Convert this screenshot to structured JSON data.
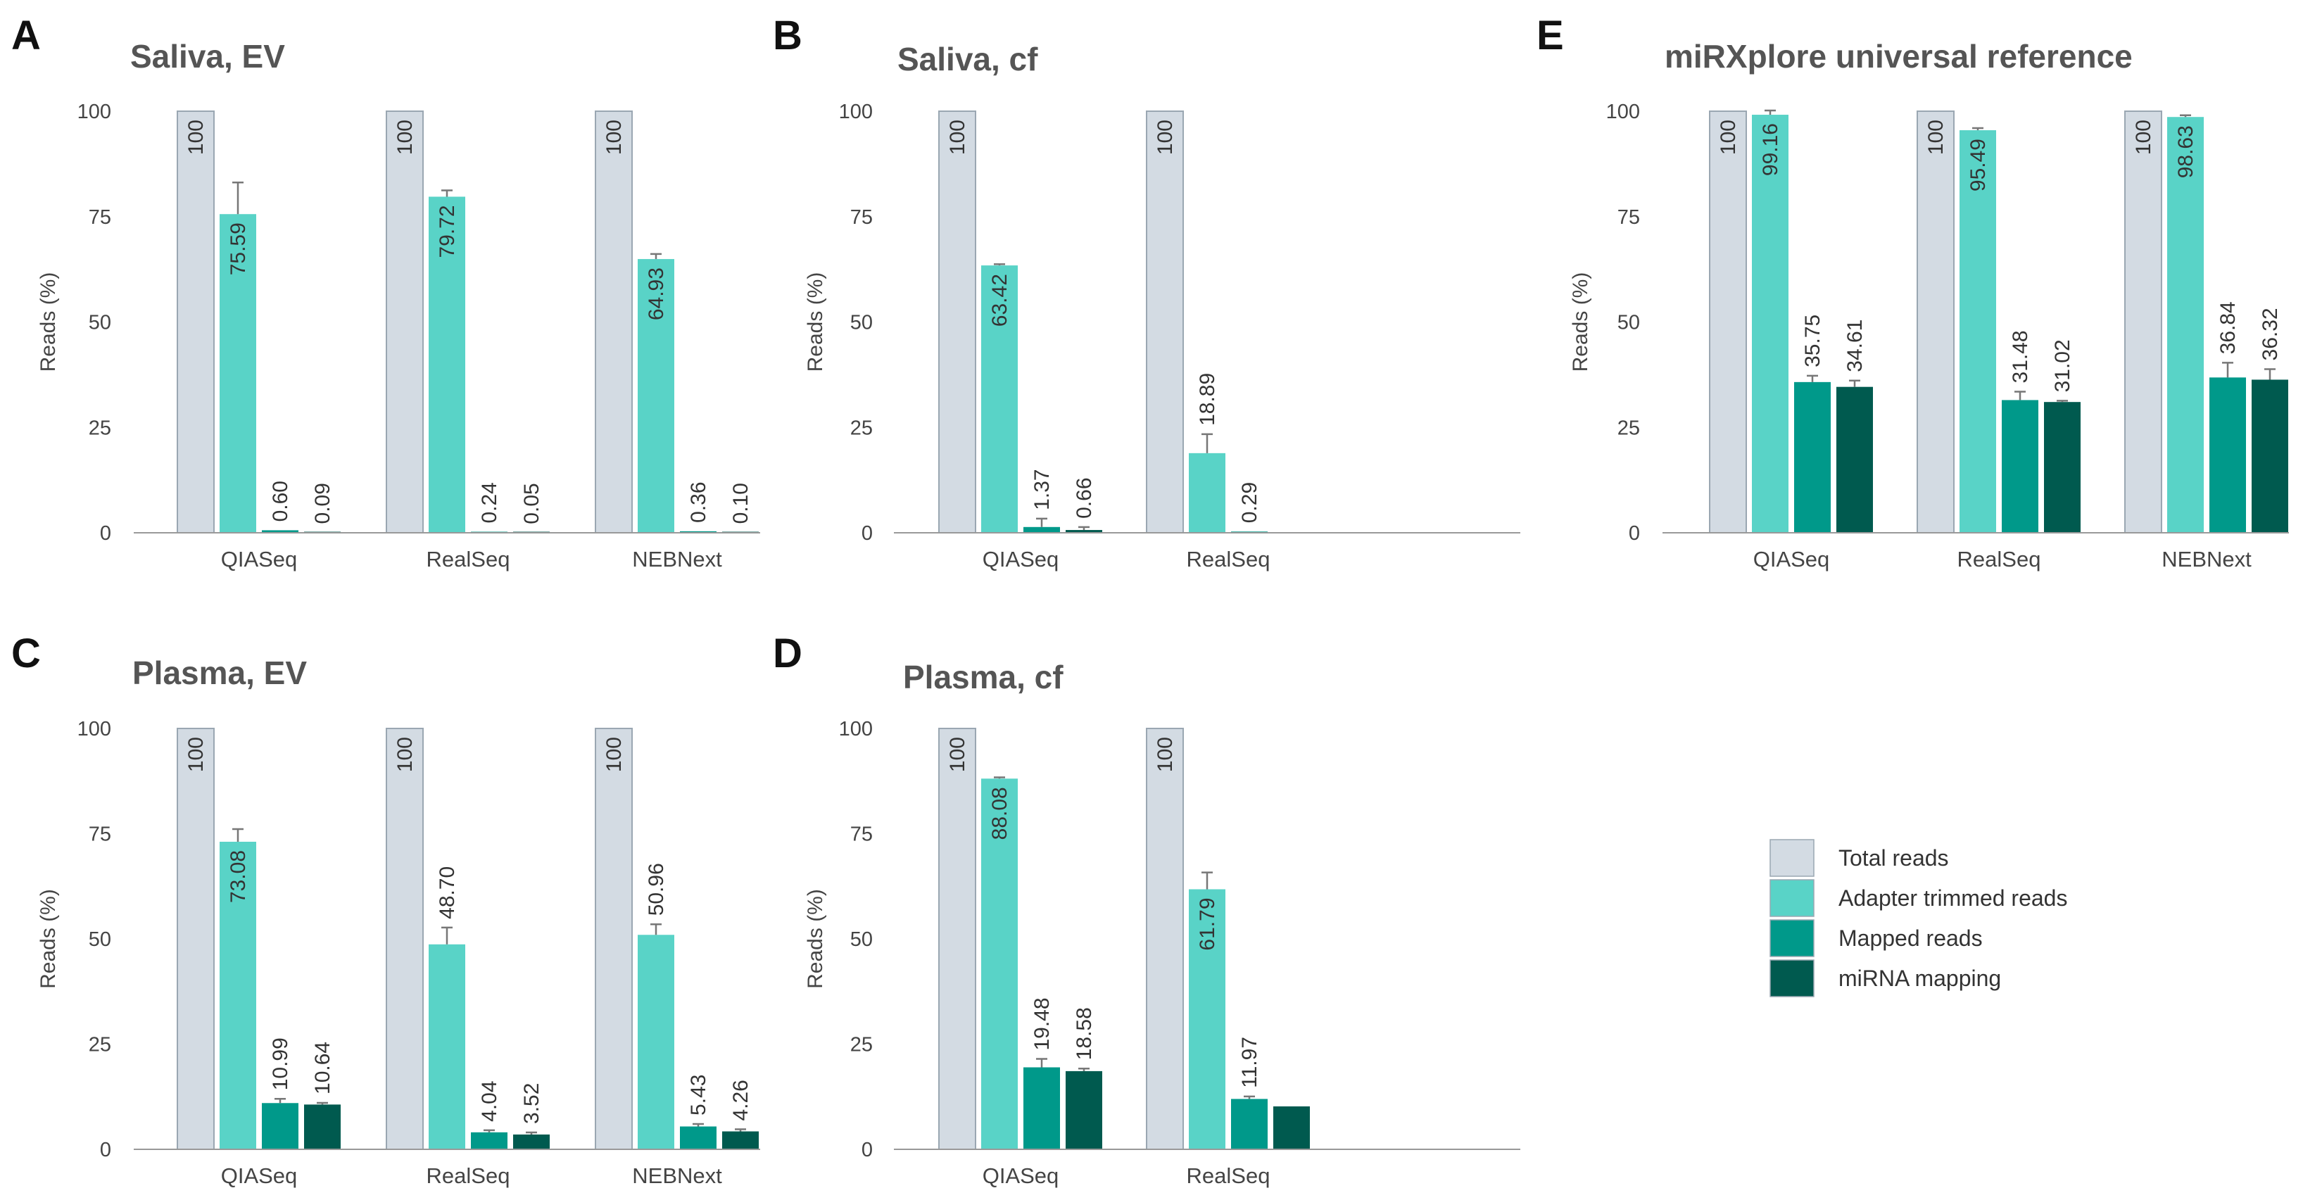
{
  "series_colors": {
    "Total reads": "#d3dbe3",
    "Adapter trimmed reads": "#59d3c7",
    "Mapped reads": "#00998a",
    "miRNA mapping": "#005a4f"
  },
  "legend": {
    "items": [
      {
        "label": "Total reads",
        "color": "#d3dbe3"
      },
      {
        "label": "Adapter trimmed reads",
        "color": "#59d3c7"
      },
      {
        "label": "Mapped reads",
        "color": "#00998a"
      },
      {
        "label": "miRNA mapping",
        "color": "#005a4f"
      }
    ]
  },
  "chart_data": [
    {
      "id": "A",
      "type": "bar",
      "title": "Saliva, EV",
      "ylabel": "Reads (%)",
      "ylim": [
        0,
        100
      ],
      "yticks": [
        "0",
        "25",
        "50",
        "75",
        "100"
      ],
      "slots": 3,
      "categories": [
        "QIASeq",
        "RealSeq",
        "NEBNext"
      ],
      "series": [
        {
          "name": "Total reads",
          "values": [
            100,
            100,
            100
          ],
          "labels": [
            "100",
            "100",
            "100"
          ],
          "errors": [
            0,
            0,
            0
          ]
        },
        {
          "name": "Adapter trimmed reads",
          "values": [
            75.59,
            79.72,
            64.93
          ],
          "labels": [
            "75.59",
            "79.72",
            "64.93"
          ],
          "errors": [
            7.5,
            1.5,
            1.2
          ]
        },
        {
          "name": "Mapped reads",
          "values": [
            0.6,
            0.24,
            0.36
          ],
          "labels": [
            "0.60",
            "0.24",
            "0.36"
          ],
          "errors": [
            0,
            0,
            0
          ]
        },
        {
          "name": "miRNA mapping",
          "values": [
            0.09,
            0.05,
            0.1
          ],
          "labels": [
            "0.09",
            "0.05",
            "0.10"
          ],
          "errors": [
            0,
            0,
            0
          ]
        }
      ]
    },
    {
      "id": "B",
      "type": "bar",
      "title": "Saliva, cf",
      "ylabel": "Reads (%)",
      "ylim": [
        0,
        100
      ],
      "yticks": [
        "0",
        "25",
        "50",
        "75",
        "100"
      ],
      "slots": 3,
      "categories": [
        "QIASeq",
        "RealSeq"
      ],
      "series": [
        {
          "name": "Total reads",
          "values": [
            100,
            100
          ],
          "labels": [
            "100",
            "100"
          ],
          "errors": [
            0,
            0
          ]
        },
        {
          "name": "Adapter trimmed reads",
          "values": [
            63.42,
            18.89
          ],
          "labels": [
            "63.42",
            "18.89"
          ],
          "errors": [
            0.3,
            4.5
          ]
        },
        {
          "name": "Mapped reads",
          "values": [
            1.37,
            0.29
          ],
          "labels": [
            "1.37",
            "0.29"
          ],
          "errors": [
            2.0,
            0
          ]
        },
        {
          "name": "miRNA mapping",
          "values": [
            0.66,
            null
          ],
          "labels": [
            "0.66",
            null
          ],
          "errors": [
            0.7,
            0
          ]
        }
      ]
    },
    {
      "id": "E",
      "type": "bar",
      "title": "miRXplore universal reference",
      "ylabel": "Reads (%)",
      "ylim": [
        0,
        100
      ],
      "yticks": [
        "0",
        "25",
        "50",
        "75",
        "100"
      ],
      "slots": 3,
      "categories": [
        "QIASeq",
        "RealSeq",
        "NEBNext"
      ],
      "series": [
        {
          "name": "Total reads",
          "values": [
            100,
            100,
            100
          ],
          "labels": [
            "100",
            "100",
            "100"
          ],
          "errors": [
            0,
            0,
            0
          ]
        },
        {
          "name": "Adapter trimmed reads",
          "values": [
            99.16,
            95.49,
            98.63
          ],
          "labels": [
            "99.16",
            "95.49",
            "98.63"
          ],
          "errors": [
            1.0,
            0.5,
            0.4
          ]
        },
        {
          "name": "Mapped reads",
          "values": [
            35.75,
            31.48,
            36.84
          ],
          "labels": [
            "35.75",
            "31.48",
            "36.84"
          ],
          "errors": [
            1.5,
            2.0,
            3.5
          ]
        },
        {
          "name": "miRNA mapping",
          "values": [
            34.61,
            31.02,
            36.32
          ],
          "labels": [
            "34.61",
            "31.02",
            "36.32"
          ],
          "errors": [
            1.5,
            0.3,
            2.5
          ]
        }
      ]
    },
    {
      "id": "C",
      "type": "bar",
      "title": "Plasma, EV",
      "ylabel": "Reads (%)",
      "ylim": [
        0,
        100
      ],
      "yticks": [
        "0",
        "25",
        "50",
        "75",
        "100"
      ],
      "slots": 3,
      "categories": [
        "QIASeq",
        "RealSeq",
        "NEBNext"
      ],
      "series": [
        {
          "name": "Total reads",
          "values": [
            100,
            100,
            100
          ],
          "labels": [
            "100",
            "100",
            "100"
          ],
          "errors": [
            0,
            0,
            0
          ]
        },
        {
          "name": "Adapter trimmed reads",
          "values": [
            73.08,
            48.7,
            50.96
          ],
          "labels": [
            "73.08",
            "48.70",
            "50.96"
          ],
          "errors": [
            3.0,
            4.0,
            2.5
          ]
        },
        {
          "name": "Mapped reads",
          "values": [
            10.99,
            4.04,
            5.43
          ],
          "labels": [
            "10.99",
            "4.04",
            "5.43"
          ],
          "errors": [
            1.0,
            0.5,
            0.6
          ]
        },
        {
          "name": "miRNA mapping",
          "values": [
            10.64,
            3.52,
            4.26
          ],
          "labels": [
            "10.64",
            "3.52",
            "4.26"
          ],
          "errors": [
            0.4,
            0.5,
            0.5
          ]
        }
      ]
    },
    {
      "id": "D",
      "type": "bar",
      "title": "Plasma, cf",
      "ylabel": "Reads (%)",
      "ylim": [
        0,
        100
      ],
      "yticks": [
        "0",
        "25",
        "50",
        "75",
        "100"
      ],
      "slots": 3,
      "categories": [
        "QIASeq",
        "RealSeq"
      ],
      "series": [
        {
          "name": "Total reads",
          "values": [
            100,
            100
          ],
          "labels": [
            "100",
            "100"
          ],
          "errors": [
            0,
            0
          ]
        },
        {
          "name": "Adapter trimmed reads",
          "values": [
            88.08,
            61.79
          ],
          "labels": [
            "88.08",
            "61.79"
          ],
          "errors": [
            0.3,
            4.0
          ]
        },
        {
          "name": "Mapped reads",
          "values": [
            19.48,
            11.97
          ],
          "labels": [
            "19.48",
            "11.97"
          ],
          "errors": [
            2.0,
            0.6
          ]
        },
        {
          "name": "miRNA mapping",
          "values": [
            18.58,
            10.2
          ],
          "labels": [
            "18.58",
            null
          ],
          "errors": [
            0.6,
            0
          ]
        }
      ]
    }
  ]
}
